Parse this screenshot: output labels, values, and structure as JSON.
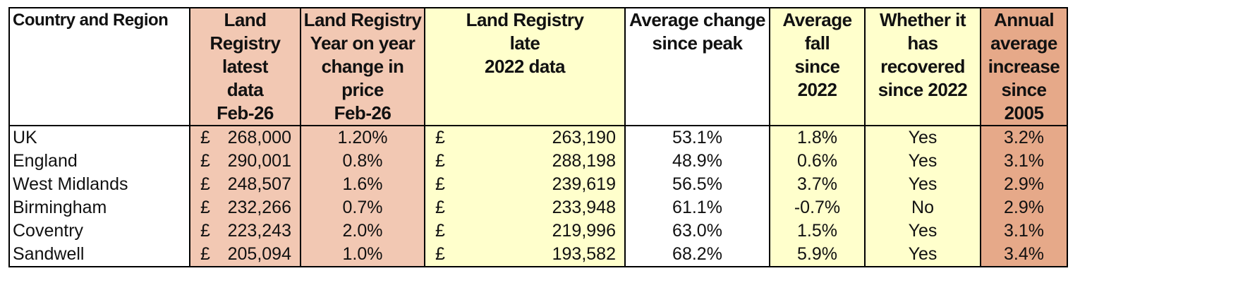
{
  "headers": {
    "region": "Country and Region",
    "latest": [
      "Land Registry",
      "latest",
      "data",
      "Feb-26"
    ],
    "yoy": [
      "Land Registry",
      "Year on year",
      "change in price",
      "Feb-26"
    ],
    "late2022": [
      "Land Registry",
      "late",
      "2022 data"
    ],
    "peak": [
      "Average change",
      "since peak"
    ],
    "fall": [
      "Average fall",
      "since",
      "2022"
    ],
    "recovered": [
      "Whether it",
      "has recovered",
      "since 2022"
    ],
    "annual": [
      "Annual",
      "average",
      "increase",
      "since 2005"
    ]
  },
  "currency": "£",
  "rows": [
    {
      "region": "UK",
      "latest": "268,000",
      "yoy": "1.20%",
      "late2022": "263,190",
      "peak": "53.1%",
      "fall": "1.8%",
      "recovered": "Yes",
      "annual": "3.2%"
    },
    {
      "region": "England",
      "latest": "290,001",
      "yoy": "0.8%",
      "late2022": "288,198",
      "peak": "48.9%",
      "fall": "0.6%",
      "recovered": "Yes",
      "annual": "3.1%"
    },
    {
      "region": "West Midlands",
      "latest": "248,507",
      "yoy": "1.6%",
      "late2022": "239,619",
      "peak": "56.5%",
      "fall": "3.7%",
      "recovered": "Yes",
      "annual": "2.9%"
    },
    {
      "region": "Birmingham",
      "latest": "232,266",
      "yoy": "0.7%",
      "late2022": "233,948",
      "peak": "61.1%",
      "fall": "-0.7%",
      "recovered": "No",
      "annual": "2.9%"
    },
    {
      "region": "Coventry",
      "latest": "223,243",
      "yoy": "2.0%",
      "late2022": "219,996",
      "peak": "63.0%",
      "fall": "1.5%",
      "recovered": "Yes",
      "annual": "3.1%"
    },
    {
      "region": "Sandwell",
      "latest": "205,094",
      "yoy": "1.0%",
      "late2022": "193,582",
      "peak": "68.2%",
      "fall": "5.9%",
      "recovered": "Yes",
      "annual": "3.4%"
    }
  ],
  "colors": {
    "pink": "#f2c8b3",
    "yellow": "#ffffcc",
    "orange": "#e6a989",
    "white": "#ffffff"
  }
}
